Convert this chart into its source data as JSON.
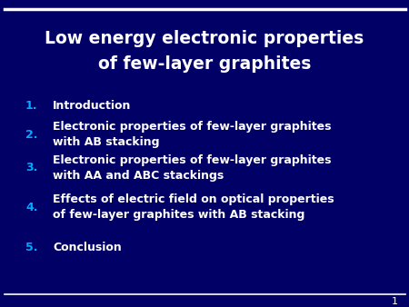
{
  "title_line1": "Low energy electronic properties",
  "title_line2": "of few-layer graphites",
  "background_color": "#010066",
  "title_color": "#FFFFFF",
  "number_color": "#00AAFF",
  "text_color": "#FFFFFF",
  "top_bar_color": "#FFFFFF",
  "bottom_bar_color": "#FFFFFF",
  "slide_number": "1",
  "items": [
    {
      "num": "1.",
      "text": "Introduction"
    },
    {
      "num": "2.",
      "text": "Electronic properties of few-layer graphites\nwith AB stacking"
    },
    {
      "num": "3.",
      "text": "Electronic properties of few-layer graphites\nwith AA and ABC stackings"
    },
    {
      "num": "4.",
      "text": "Effects of electric field on optical properties\nof few-layer graphites with AB stacking"
    },
    {
      "num": "5.",
      "text": "Conclusion"
    }
  ]
}
